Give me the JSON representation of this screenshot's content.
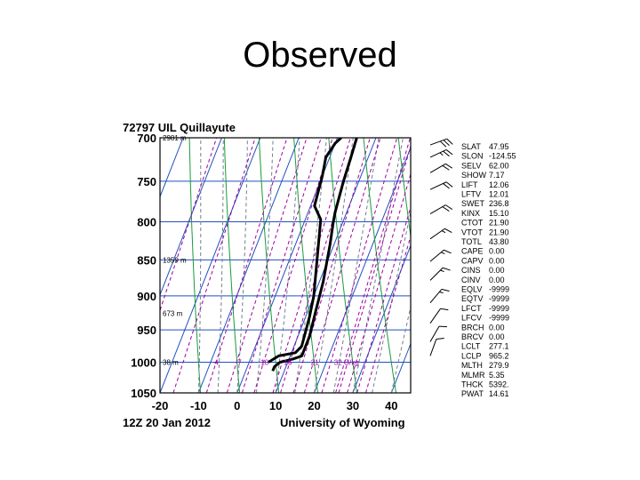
{
  "slide": {
    "title": "Observed"
  },
  "chart_data": {
    "type": "line",
    "title": "72797 UIL Quillayute",
    "subtitle_left": "12Z 20 Jan 2012",
    "subtitle_right": "University of Wyoming",
    "xlim": [
      -20,
      45
    ],
    "ylim": [
      1050,
      700
    ],
    "x_ticks": [
      "-20",
      "-10",
      "0",
      "10",
      "20",
      "30",
      "40"
    ],
    "y_ticks": [
      "700",
      "750",
      "800",
      "850",
      "900",
      "950",
      "1000",
      "1050"
    ],
    "height_labels": [
      {
        "p": 700,
        "label": "2981 m"
      },
      {
        "p": 850,
        "label": "1359 m"
      },
      {
        "p": 925,
        "label": "673 m"
      },
      {
        "p": 1000,
        "label": "38 m"
      }
    ],
    "mixing_labels": [
      "4",
      "7",
      "10",
      "16",
      "21",
      "32 G/kg"
    ],
    "series": [
      {
        "points": [
          [
            1,
            700
          ],
          [
            0,
            706
          ],
          [
            -1,
            722
          ],
          [
            0,
            744
          ],
          [
            1,
            780
          ],
          [
            4,
            797
          ],
          [
            6,
            830
          ],
          [
            10,
            900
          ],
          [
            11,
            930
          ],
          [
            12,
            975
          ],
          [
            11,
            985
          ],
          [
            7,
            990
          ],
          [
            5,
            1000
          ]
        ]
      },
      {
        "points": [
          [
            5,
            700
          ],
          [
            5.5,
            722
          ],
          [
            6,
            750
          ],
          [
            7,
            788
          ],
          [
            7.5,
            800
          ],
          [
            9,
            830
          ],
          [
            11,
            880
          ],
          [
            12,
            920
          ],
          [
            13,
            960
          ],
          [
            13,
            990
          ],
          [
            11,
            995
          ],
          [
            8,
            1000
          ],
          [
            7,
            1007
          ],
          [
            7,
            1014
          ]
        ]
      }
    ],
    "indices": [
      {
        "name": "SLAT",
        "value": "47.95"
      },
      {
        "name": "SLON",
        "value": "-124.55"
      },
      {
        "name": "SELV",
        "value": "62.00"
      },
      {
        "name": "SHOW",
        "value": "7.17"
      },
      {
        "name": "LIFT",
        "value": "12.06"
      },
      {
        "name": "LFTV",
        "value": "12.01"
      },
      {
        "name": "SWET",
        "value": "236.8"
      },
      {
        "name": "KINX",
        "value": "15.10"
      },
      {
        "name": "CTOT",
        "value": "21.90"
      },
      {
        "name": "VTOT",
        "value": "21.90"
      },
      {
        "name": "TOTL",
        "value": "43.80"
      },
      {
        "name": "CAPE",
        "value": "0.00"
      },
      {
        "name": "CAPV",
        "value": "0.00"
      },
      {
        "name": "CINS",
        "value": "0.00"
      },
      {
        "name": "CINV",
        "value": "0.00"
      },
      {
        "name": "EQLV",
        "value": "-9999"
      },
      {
        "name": "EQTV",
        "value": "-9999"
      },
      {
        "name": "LFCT",
        "value": "-9999"
      },
      {
        "name": "LFCV",
        "value": "-9999"
      },
      {
        "name": "BRCH",
        "value": "0.00"
      },
      {
        "name": "BRCV",
        "value": "0.00"
      },
      {
        "name": "LCLT",
        "value": "277.1"
      },
      {
        "name": "LCLP",
        "value": "965.2"
      },
      {
        "name": "MLTH",
        "value": "279.9"
      },
      {
        "name": "MLMR",
        "value": "5.35"
      },
      {
        "name": "THCK",
        "value": "5392."
      },
      {
        "name": "PWAT",
        "value": "14.61"
      }
    ],
    "wind_barbs": [
      {
        "p": 708,
        "dir": 250,
        "kt": 30
      },
      {
        "p": 722,
        "dir": 245,
        "kt": 25
      },
      {
        "p": 740,
        "dir": 240,
        "kt": 20
      },
      {
        "p": 760,
        "dir": 245,
        "kt": 20
      },
      {
        "p": 790,
        "dir": 240,
        "kt": 20
      },
      {
        "p": 822,
        "dir": 235,
        "kt": 15
      },
      {
        "p": 852,
        "dir": 230,
        "kt": 15
      },
      {
        "p": 878,
        "dir": 225,
        "kt": 15
      },
      {
        "p": 910,
        "dir": 220,
        "kt": 15
      },
      {
        "p": 940,
        "dir": 215,
        "kt": 10
      },
      {
        "p": 968,
        "dir": 210,
        "kt": 10
      },
      {
        "p": 990,
        "dir": 200,
        "kt": 10
      }
    ]
  }
}
